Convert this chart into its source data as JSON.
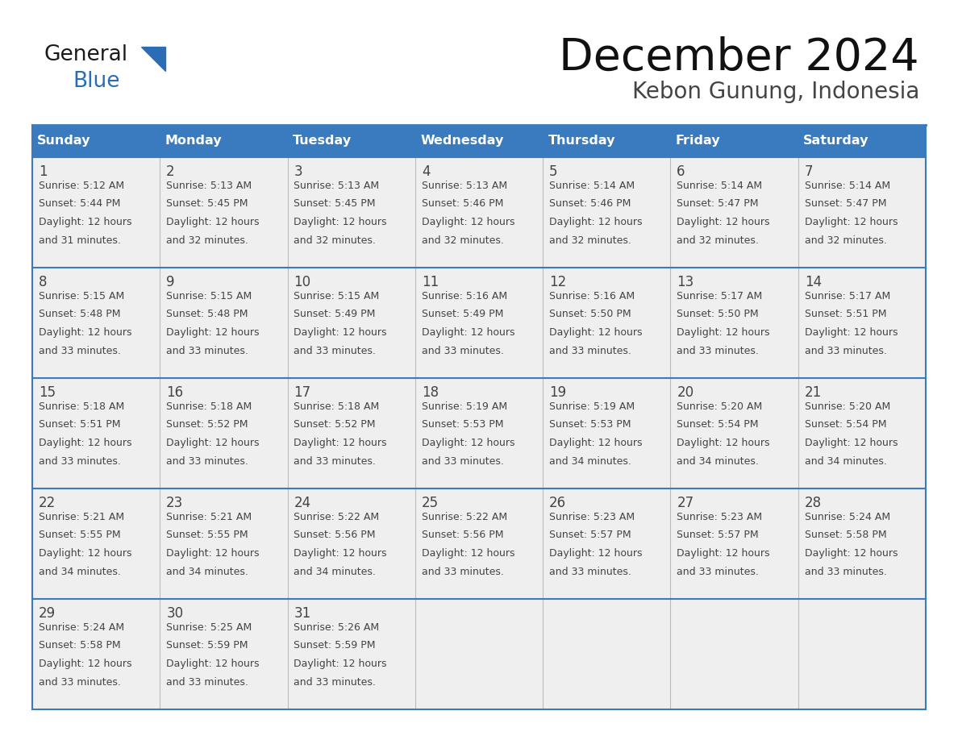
{
  "title": "December 2024",
  "subtitle": "Kebon Gunung, Indonesia",
  "header_color": "#3a7abf",
  "header_text_color": "#ffffff",
  "cell_bg_color": "#efefef",
  "border_color": "#3a7abf",
  "row_border_color": "#3a7abf",
  "text_color": "#444444",
  "days_of_week": [
    "Sunday",
    "Monday",
    "Tuesday",
    "Wednesday",
    "Thursday",
    "Friday",
    "Saturday"
  ],
  "weeks": [
    [
      {
        "day": 1,
        "sunrise": "5:12 AM",
        "sunset": "5:44 PM",
        "daylight": "12 hours and 31 minutes."
      },
      {
        "day": 2,
        "sunrise": "5:13 AM",
        "sunset": "5:45 PM",
        "daylight": "12 hours and 32 minutes."
      },
      {
        "day": 3,
        "sunrise": "5:13 AM",
        "sunset": "5:45 PM",
        "daylight": "12 hours and 32 minutes."
      },
      {
        "day": 4,
        "sunrise": "5:13 AM",
        "sunset": "5:46 PM",
        "daylight": "12 hours and 32 minutes."
      },
      {
        "day": 5,
        "sunrise": "5:14 AM",
        "sunset": "5:46 PM",
        "daylight": "12 hours and 32 minutes."
      },
      {
        "day": 6,
        "sunrise": "5:14 AM",
        "sunset": "5:47 PM",
        "daylight": "12 hours and 32 minutes."
      },
      {
        "day": 7,
        "sunrise": "5:14 AM",
        "sunset": "5:47 PM",
        "daylight": "12 hours and 32 minutes."
      }
    ],
    [
      {
        "day": 8,
        "sunrise": "5:15 AM",
        "sunset": "5:48 PM",
        "daylight": "12 hours and 33 minutes."
      },
      {
        "day": 9,
        "sunrise": "5:15 AM",
        "sunset": "5:48 PM",
        "daylight": "12 hours and 33 minutes."
      },
      {
        "day": 10,
        "sunrise": "5:15 AM",
        "sunset": "5:49 PM",
        "daylight": "12 hours and 33 minutes."
      },
      {
        "day": 11,
        "sunrise": "5:16 AM",
        "sunset": "5:49 PM",
        "daylight": "12 hours and 33 minutes."
      },
      {
        "day": 12,
        "sunrise": "5:16 AM",
        "sunset": "5:50 PM",
        "daylight": "12 hours and 33 minutes."
      },
      {
        "day": 13,
        "sunrise": "5:17 AM",
        "sunset": "5:50 PM",
        "daylight": "12 hours and 33 minutes."
      },
      {
        "day": 14,
        "sunrise": "5:17 AM",
        "sunset": "5:51 PM",
        "daylight": "12 hours and 33 minutes."
      }
    ],
    [
      {
        "day": 15,
        "sunrise": "5:18 AM",
        "sunset": "5:51 PM",
        "daylight": "12 hours and 33 minutes."
      },
      {
        "day": 16,
        "sunrise": "5:18 AM",
        "sunset": "5:52 PM",
        "daylight": "12 hours and 33 minutes."
      },
      {
        "day": 17,
        "sunrise": "5:18 AM",
        "sunset": "5:52 PM",
        "daylight": "12 hours and 33 minutes."
      },
      {
        "day": 18,
        "sunrise": "5:19 AM",
        "sunset": "5:53 PM",
        "daylight": "12 hours and 33 minutes."
      },
      {
        "day": 19,
        "sunrise": "5:19 AM",
        "sunset": "5:53 PM",
        "daylight": "12 hours and 34 minutes."
      },
      {
        "day": 20,
        "sunrise": "5:20 AM",
        "sunset": "5:54 PM",
        "daylight": "12 hours and 34 minutes."
      },
      {
        "day": 21,
        "sunrise": "5:20 AM",
        "sunset": "5:54 PM",
        "daylight": "12 hours and 34 minutes."
      }
    ],
    [
      {
        "day": 22,
        "sunrise": "5:21 AM",
        "sunset": "5:55 PM",
        "daylight": "12 hours and 34 minutes."
      },
      {
        "day": 23,
        "sunrise": "5:21 AM",
        "sunset": "5:55 PM",
        "daylight": "12 hours and 34 minutes."
      },
      {
        "day": 24,
        "sunrise": "5:22 AM",
        "sunset": "5:56 PM",
        "daylight": "12 hours and 34 minutes."
      },
      {
        "day": 25,
        "sunrise": "5:22 AM",
        "sunset": "5:56 PM",
        "daylight": "12 hours and 33 minutes."
      },
      {
        "day": 26,
        "sunrise": "5:23 AM",
        "sunset": "5:57 PM",
        "daylight": "12 hours and 33 minutes."
      },
      {
        "day": 27,
        "sunrise": "5:23 AM",
        "sunset": "5:57 PM",
        "daylight": "12 hours and 33 minutes."
      },
      {
        "day": 28,
        "sunrise": "5:24 AM",
        "sunset": "5:58 PM",
        "daylight": "12 hours and 33 minutes."
      }
    ],
    [
      {
        "day": 29,
        "sunrise": "5:24 AM",
        "sunset": "5:58 PM",
        "daylight": "12 hours and 33 minutes."
      },
      {
        "day": 30,
        "sunrise": "5:25 AM",
        "sunset": "5:59 PM",
        "daylight": "12 hours and 33 minutes."
      },
      {
        "day": 31,
        "sunrise": "5:26 AM",
        "sunset": "5:59 PM",
        "daylight": "12 hours and 33 minutes."
      },
      null,
      null,
      null,
      null
    ]
  ],
  "logo_text_general": "General",
  "logo_text_blue": "Blue",
  "logo_color_general": "#1a1a1a",
  "logo_color_blue": "#2a6db5",
  "logo_triangle_color": "#2a6db5"
}
